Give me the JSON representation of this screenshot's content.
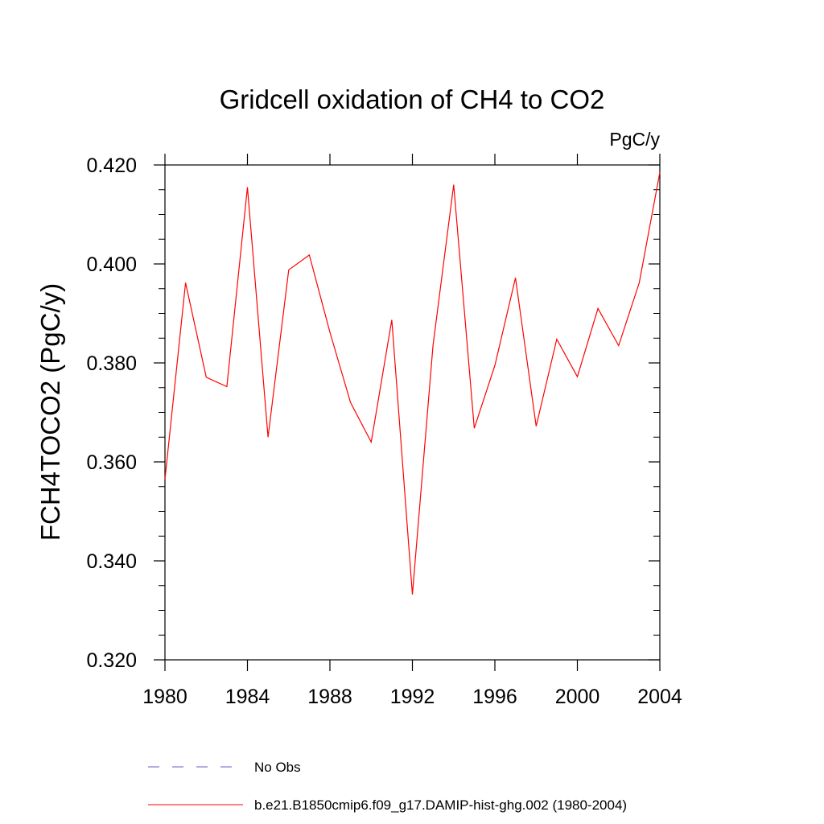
{
  "chart_data": {
    "type": "line",
    "title": "Gridcell oxidation of CH4 to CO2",
    "units": "PgC/y",
    "ylabel": "FCH4TOCO2  (PgC/y)",
    "xlabel": "",
    "xlim": [
      1980,
      2004
    ],
    "ylim": [
      0.32,
      0.42
    ],
    "x_ticks": [
      "1980",
      "1984",
      "1988",
      "1992",
      "1996",
      "2000",
      "2004"
    ],
    "y_ticks": [
      "0.320",
      "0.340",
      "0.360",
      "0.380",
      "0.400",
      "0.420"
    ],
    "grid": false,
    "x": [
      1980,
      1981,
      1982,
      1983,
      1984,
      1985,
      1986,
      1987,
      1988,
      1989,
      1990,
      1991,
      1992,
      1993,
      1994,
      1995,
      1996,
      1997,
      1998,
      1999,
      2000,
      2001,
      2002,
      2003,
      2004
    ],
    "series": [
      {
        "name": "b.e21.B1850cmip6.f09_g17.DAMIP-hist-ghg.002 (1980-2004)",
        "color": "#ff0000",
        "dash": "solid",
        "values": [
          0.3565,
          0.3962,
          0.3771,
          0.3752,
          0.4155,
          0.365,
          0.3988,
          0.4018,
          0.3862,
          0.372,
          0.364,
          0.3887,
          0.3332,
          0.3835,
          0.416,
          0.3668,
          0.3795,
          0.3972,
          0.3672,
          0.3848,
          0.3772,
          0.391,
          0.3835,
          0.3962,
          0.4185
        ]
      }
    ],
    "legend": [
      {
        "label": "No Obs",
        "color": "#6a5acd",
        "dash": "dashed"
      },
      {
        "label": "b.e21.B1850cmip6.f09_g17.DAMIP-hist-ghg.002 (1980-2004)",
        "color": "#ff0000",
        "dash": "solid"
      }
    ],
    "legend_position": "bottom"
  }
}
